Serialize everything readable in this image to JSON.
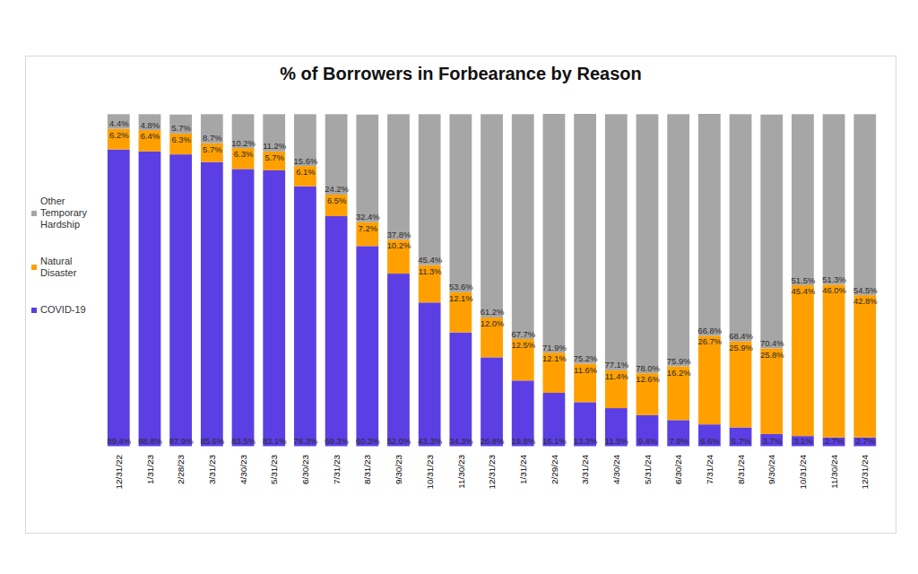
{
  "chart_data": {
    "type": "bar",
    "title": "% of Borrowers in Forbearance by Reason",
    "stacked": true,
    "data_labels": true,
    "legend": "left",
    "tick_labels": "x",
    "grid": false,
    "categories": [
      "12/31/22",
      "1/31/23",
      "2/28/23",
      "3/31/23",
      "4/30/23",
      "5/31/23",
      "6/30/23",
      "7/31/23",
      "8/31/23",
      "9/30/23",
      "10/31/23",
      "11/30/23",
      "12/31/23",
      "1/31/24",
      "2/29/24",
      "3/31/24",
      "4/30/24",
      "5/31/24",
      "6/30/24",
      "7/31/24",
      "8/31/24",
      "9/30/24",
      "10/31/24",
      "11/30/24",
      "12/31/24"
    ],
    "series": [
      {
        "name": "COVID-19",
        "color": "#5b3fe4",
        "values": [
          89.4,
          88.8,
          87.9,
          85.6,
          83.5,
          83.1,
          78.3,
          69.3,
          60.3,
          52.0,
          43.3,
          34.3,
          26.8,
          19.8,
          16.1,
          13.3,
          11.5,
          9.4,
          7.9,
          6.6,
          5.7,
          3.7,
          3.1,
          2.7,
          2.7
        ],
        "value_labels": [
          "89.4%",
          "88.8%",
          "87.9%",
          "85.6%",
          "83.5%",
          "83.1%",
          "78.3%",
          "69.3%",
          "60.3%",
          "52.0%",
          "43.3%",
          "34.3%",
          "26.8%",
          "19.8%",
          "16.1%",
          "13.3%",
          "11.5%",
          "9.4%",
          "7.9%",
          "6.6%",
          "5.7%",
          "3.7%",
          "3.1%",
          "2.7%",
          "2.7%"
        ]
      },
      {
        "name": "Natural Disaster",
        "color": "#ffa000",
        "values": [
          6.2,
          6.4,
          6.3,
          5.7,
          6.3,
          5.7,
          6.1,
          6.5,
          7.2,
          10.2,
          11.3,
          12.1,
          12.0,
          12.5,
          12.1,
          11.6,
          11.4,
          12.6,
          16.2,
          26.7,
          25.9,
          25.8,
          45.4,
          46.0,
          42.8
        ],
        "value_labels": [
          "6.2%",
          "6.4%",
          "6.3%",
          "5.7%",
          "6.3%",
          "5.7%",
          "6.1%",
          "6.5%",
          "7.2%",
          "10.2%",
          "11.3%",
          "12.1%",
          "12.0%",
          "12.5%",
          "12.1%",
          "11.6%",
          "11.4%",
          "12.6%",
          "16.2%",
          "26.7%",
          "25.9%",
          "25.8%",
          "45.4%",
          "46.0%",
          "42.8%"
        ]
      },
      {
        "name": "Other Temporary Hardship",
        "color": "#a6a6a6",
        "values": [
          4.4,
          4.8,
          5.7,
          8.7,
          10.2,
          11.2,
          15.6,
          24.2,
          32.4,
          37.8,
          45.4,
          53.6,
          61.2,
          67.7,
          71.9,
          75.2,
          77.1,
          78.0,
          75.9,
          66.8,
          68.4,
          70.4,
          51.5,
          51.3,
          54.5
        ],
        "value_labels": [
          "4.4%",
          "4.8%",
          "5.7%",
          "8.7%",
          "10.2%",
          "11.2%",
          "15.6%",
          "24.2%",
          "32.4%",
          "37.8%",
          "45.4%",
          "53.6%",
          "61.2%",
          "67.7%",
          "71.9%",
          "75.2%",
          "77.1%",
          "78.0%",
          "75.9%",
          "66.8%",
          "68.4%",
          "70.4%",
          "51.5%",
          "51.3%",
          "54.5%"
        ]
      }
    ]
  }
}
